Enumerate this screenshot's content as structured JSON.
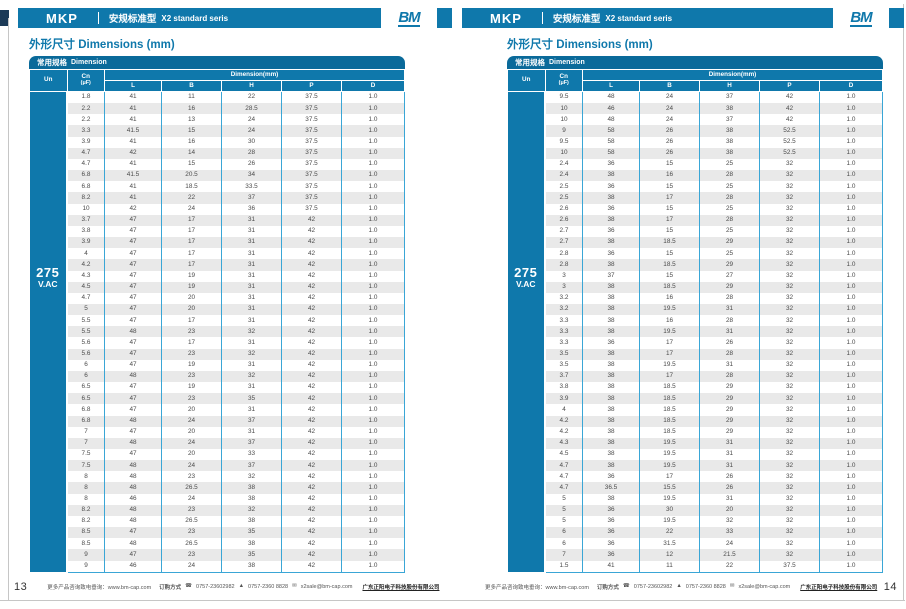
{
  "brand": {
    "logo_text": "BM"
  },
  "colors": {
    "primary": "#0f78ab",
    "band": "#0a6a9a",
    "grid": "#3aa6d6",
    "stripe": "#e9e9e9",
    "navy": "#1c3a57"
  },
  "pages": [
    {
      "page_number": "13",
      "header": {
        "series": "MKP",
        "title_cn": "安规标准型",
        "title_en": "X2 standard seris"
      },
      "section_title": "外形尺寸 Dimensions (mm)",
      "table": {
        "band_cn": "常用规格",
        "band_en": "Dimension",
        "col_un": "Un",
        "col_c": "Cn",
        "col_c_unit": "(μF)",
        "dim_span": "Dimension(mm)",
        "dim_cols": [
          "L",
          "B",
          "H",
          "P",
          "D"
        ],
        "voltage_main": "275",
        "voltage_sub": "V.AC",
        "rows": [
          [
            "1.8",
            "41",
            "11",
            "22",
            "37.5",
            "1.0"
          ],
          [
            "2.2",
            "41",
            "16",
            "28.5",
            "37.5",
            "1.0"
          ],
          [
            "2.2",
            "41",
            "13",
            "24",
            "37.5",
            "1.0"
          ],
          [
            "3.3",
            "41.5",
            "15",
            "24",
            "37.5",
            "1.0"
          ],
          [
            "3.9",
            "41",
            "16",
            "30",
            "37.5",
            "1.0"
          ],
          [
            "4.7",
            "42",
            "14",
            "28",
            "37.5",
            "1.0"
          ],
          [
            "4.7",
            "41",
            "15",
            "26",
            "37.5",
            "1.0"
          ],
          [
            "6.8",
            "41.5",
            "20.5",
            "34",
            "37.5",
            "1.0"
          ],
          [
            "6.8",
            "41",
            "18.5",
            "33.5",
            "37.5",
            "1.0"
          ],
          [
            "8.2",
            "41",
            "22",
            "37",
            "37.5",
            "1.0"
          ],
          [
            "10",
            "42",
            "24",
            "36",
            "37.5",
            "1.0"
          ],
          [
            "3.7",
            "47",
            "17",
            "31",
            "42",
            "1.0"
          ],
          [
            "3.8",
            "47",
            "17",
            "31",
            "42",
            "1.0"
          ],
          [
            "3.9",
            "47",
            "17",
            "31",
            "42",
            "1.0"
          ],
          [
            "4",
            "47",
            "17",
            "31",
            "42",
            "1.0"
          ],
          [
            "4.2",
            "47",
            "17",
            "31",
            "42",
            "1.0"
          ],
          [
            "4.3",
            "47",
            "19",
            "31",
            "42",
            "1.0"
          ],
          [
            "4.5",
            "47",
            "19",
            "31",
            "42",
            "1.0"
          ],
          [
            "4.7",
            "47",
            "20",
            "31",
            "42",
            "1.0"
          ],
          [
            "5",
            "47",
            "20",
            "31",
            "42",
            "1.0"
          ],
          [
            "5.5",
            "47",
            "17",
            "31",
            "42",
            "1.0"
          ],
          [
            "5.5",
            "48",
            "23",
            "32",
            "42",
            "1.0"
          ],
          [
            "5.6",
            "47",
            "17",
            "31",
            "42",
            "1.0"
          ],
          [
            "5.6",
            "47",
            "23",
            "32",
            "42",
            "1.0"
          ],
          [
            "6",
            "47",
            "19",
            "31",
            "42",
            "1.0"
          ],
          [
            "6",
            "48",
            "23",
            "32",
            "42",
            "1.0"
          ],
          [
            "6.5",
            "47",
            "19",
            "31",
            "42",
            "1.0"
          ],
          [
            "6.5",
            "47",
            "23",
            "35",
            "42",
            "1.0"
          ],
          [
            "6.8",
            "47",
            "20",
            "31",
            "42",
            "1.0"
          ],
          [
            "6.8",
            "48",
            "24",
            "37",
            "42",
            "1.0"
          ],
          [
            "7",
            "47",
            "20",
            "31",
            "42",
            "1.0"
          ],
          [
            "7",
            "48",
            "24",
            "37",
            "42",
            "1.0"
          ],
          [
            "7.5",
            "47",
            "20",
            "33",
            "42",
            "1.0"
          ],
          [
            "7.5",
            "48",
            "24",
            "37",
            "42",
            "1.0"
          ],
          [
            "8",
            "48",
            "23",
            "32",
            "42",
            "1.0"
          ],
          [
            "8",
            "48",
            "26.5",
            "38",
            "42",
            "1.0"
          ],
          [
            "8",
            "46",
            "24",
            "38",
            "42",
            "1.0"
          ],
          [
            "8.2",
            "48",
            "23",
            "32",
            "42",
            "1.0"
          ],
          [
            "8.2",
            "48",
            "26.5",
            "38",
            "42",
            "1.0"
          ],
          [
            "8.5",
            "47",
            "23",
            "35",
            "42",
            "1.0"
          ],
          [
            "8.5",
            "48",
            "26.5",
            "38",
            "42",
            "1.0"
          ],
          [
            "9",
            "47",
            "23",
            "35",
            "42",
            "1.0"
          ],
          [
            "9",
            "46",
            "24",
            "38",
            "42",
            "1.0"
          ]
        ]
      },
      "footer": {
        "info": "更多产品咨询致电垂询：www.bm-cap.com",
        "order_label": "订购方式",
        "phone_icon": "☎",
        "phone": "0757-23602982",
        "fax_icon": "▲",
        "fax": "0757-2360 8828",
        "mail_icon": "✉",
        "email": "x2sale@bm-cap.com",
        "company": "广东正阳电子科技股份有限公司"
      }
    },
    {
      "page_number": "14",
      "header": {
        "series": "MKP",
        "title_cn": "安规标准型",
        "title_en": "X2 standard seris"
      },
      "section_title": "外形尺寸 Dimensions (mm)",
      "table": {
        "band_cn": "常用规格",
        "band_en": "Dimension",
        "col_un": "Un",
        "col_c": "Cn",
        "col_c_unit": "(μF)",
        "dim_span": "Dimension(mm)",
        "dim_cols": [
          "L",
          "B",
          "H",
          "P",
          "D"
        ],
        "voltage_main": "275",
        "voltage_sub": "V.AC",
        "rows": [
          [
            "9.5",
            "48",
            "24",
            "37",
            "42",
            "1.0"
          ],
          [
            "10",
            "46",
            "24",
            "38",
            "42",
            "1.0"
          ],
          [
            "10",
            "48",
            "24",
            "37",
            "42",
            "1.0"
          ],
          [
            "9",
            "58",
            "26",
            "38",
            "52.5",
            "1.0"
          ],
          [
            "9.5",
            "58",
            "26",
            "38",
            "52.5",
            "1.0"
          ],
          [
            "10",
            "58",
            "26",
            "38",
            "52.5",
            "1.0"
          ],
          [
            "2.4",
            "36",
            "15",
            "25",
            "32",
            "1.0"
          ],
          [
            "2.4",
            "38",
            "16",
            "28",
            "32",
            "1.0"
          ],
          [
            "2.5",
            "36",
            "15",
            "25",
            "32",
            "1.0"
          ],
          [
            "2.5",
            "38",
            "17",
            "28",
            "32",
            "1.0"
          ],
          [
            "2.6",
            "36",
            "15",
            "25",
            "32",
            "1.0"
          ],
          [
            "2.6",
            "38",
            "17",
            "28",
            "32",
            "1.0"
          ],
          [
            "2.7",
            "36",
            "15",
            "25",
            "32",
            "1.0"
          ],
          [
            "2.7",
            "38",
            "18.5",
            "29",
            "32",
            "1.0"
          ],
          [
            "2.8",
            "36",
            "15",
            "25",
            "32",
            "1.0"
          ],
          [
            "2.8",
            "38",
            "18.5",
            "29",
            "32",
            "1.0"
          ],
          [
            "3",
            "37",
            "15",
            "27",
            "32",
            "1.0"
          ],
          [
            "3",
            "38",
            "18.5",
            "29",
            "32",
            "1.0"
          ],
          [
            "3.2",
            "38",
            "16",
            "28",
            "32",
            "1.0"
          ],
          [
            "3.2",
            "38",
            "19.5",
            "31",
            "32",
            "1.0"
          ],
          [
            "3.3",
            "38",
            "16",
            "28",
            "32",
            "1.0"
          ],
          [
            "3.3",
            "38",
            "19.5",
            "31",
            "32",
            "1.0"
          ],
          [
            "3.3",
            "36",
            "17",
            "26",
            "32",
            "1.0"
          ],
          [
            "3.5",
            "38",
            "17",
            "28",
            "32",
            "1.0"
          ],
          [
            "3.5",
            "38",
            "19.5",
            "31",
            "32",
            "1.0"
          ],
          [
            "3.7",
            "38",
            "17",
            "28",
            "32",
            "1.0"
          ],
          [
            "3.8",
            "38",
            "18.5",
            "29",
            "32",
            "1.0"
          ],
          [
            "3.9",
            "38",
            "18.5",
            "29",
            "32",
            "1.0"
          ],
          [
            "4",
            "38",
            "18.5",
            "29",
            "32",
            "1.0"
          ],
          [
            "4.2",
            "38",
            "18.5",
            "29",
            "32",
            "1.0"
          ],
          [
            "4.2",
            "38",
            "18.5",
            "29",
            "32",
            "1.0"
          ],
          [
            "4.3",
            "38",
            "19.5",
            "31",
            "32",
            "1.0"
          ],
          [
            "4.5",
            "38",
            "19.5",
            "31",
            "32",
            "1.0"
          ],
          [
            "4.7",
            "38",
            "19.5",
            "31",
            "32",
            "1.0"
          ],
          [
            "4.7",
            "36",
            "17",
            "26",
            "32",
            "1.0"
          ],
          [
            "4.7",
            "36.5",
            "15.5",
            "26",
            "32",
            "1.0"
          ],
          [
            "5",
            "38",
            "19.5",
            "31",
            "32",
            "1.0"
          ],
          [
            "5",
            "36",
            "30",
            "20",
            "32",
            "1.0"
          ],
          [
            "5",
            "36",
            "19.5",
            "32",
            "32",
            "1.0"
          ],
          [
            "6",
            "36",
            "22",
            "33",
            "32",
            "1.0"
          ],
          [
            "6",
            "36",
            "31.5",
            "24",
            "32",
            "1.0"
          ],
          [
            "7",
            "36",
            "12",
            "21.5",
            "32",
            "1.0"
          ],
          [
            "1.5",
            "41",
            "11",
            "22",
            "37.5",
            "1.0"
          ]
        ]
      },
      "footer": {
        "info": "更多产品咨询致电垂询：www.bm-cap.com",
        "order_label": "订购方式",
        "phone_icon": "☎",
        "phone": "0757-23602982",
        "fax_icon": "▲",
        "fax": "0757-2360 8828",
        "mail_icon": "✉",
        "email": "x2sale@bm-cap.com",
        "company": "广东正阳电子科技股份有限公司"
      }
    }
  ]
}
